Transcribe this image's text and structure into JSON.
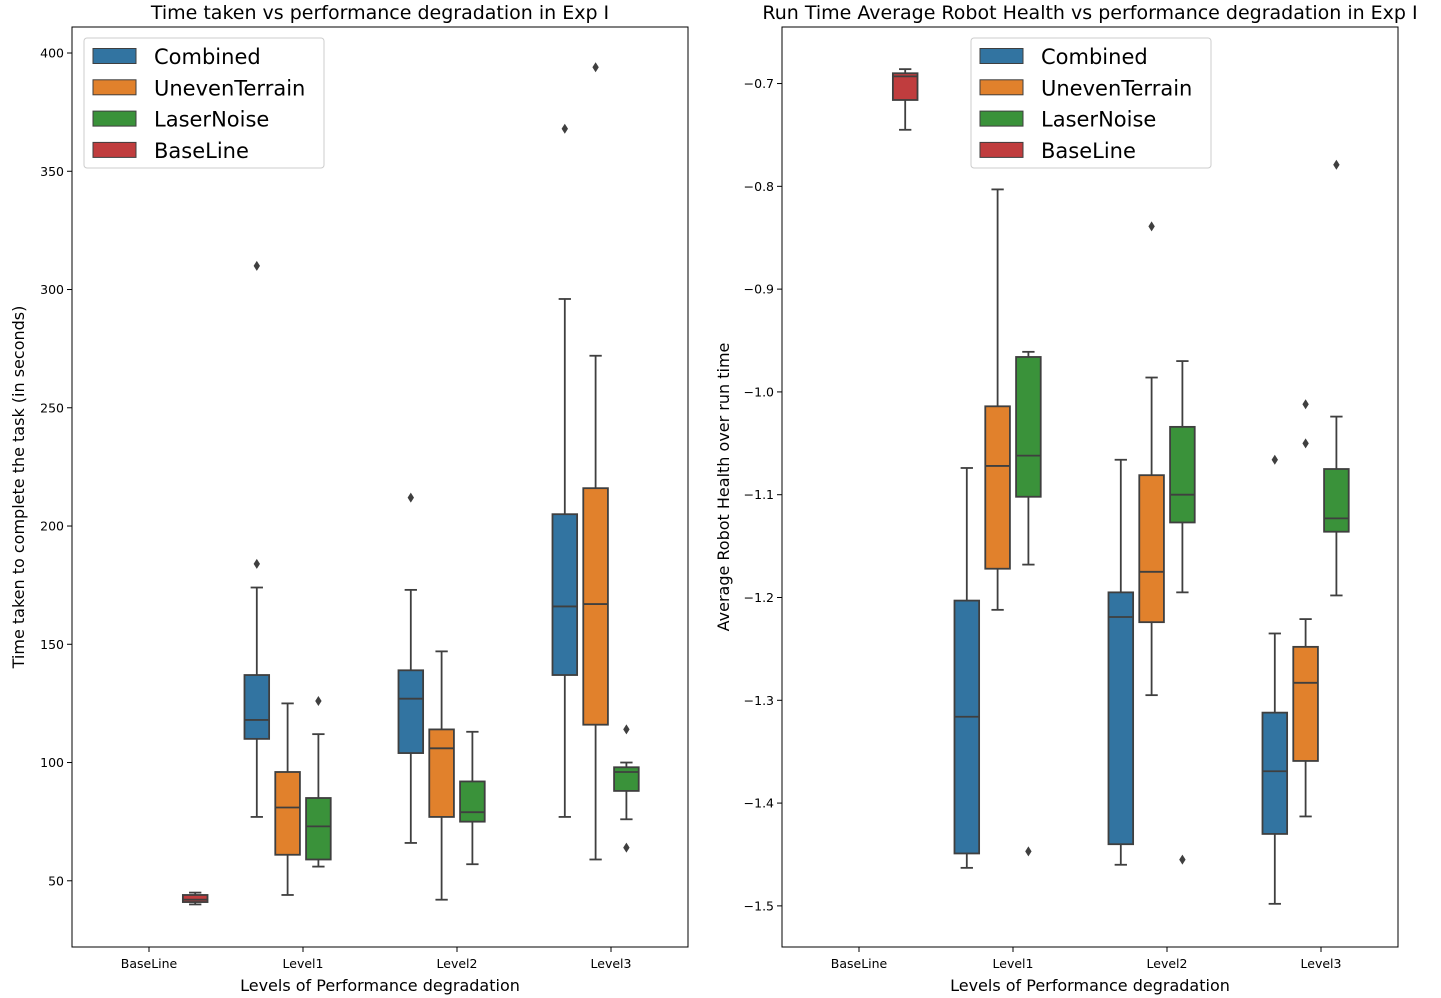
{
  "chart_data": [
    {
      "type": "box",
      "title": "Time taken vs performance degradation in Exp I",
      "xlabel": "Levels of Performance degradation",
      "ylabel": "Time taken to complete the task (in seconds)",
      "categories": [
        "BaseLine",
        "Level1",
        "Level2",
        "Level3"
      ],
      "ylim": [
        22,
        411
      ],
      "yticks": [
        50,
        100,
        150,
        200,
        250,
        300,
        350,
        400
      ],
      "legend_position": "top-left",
      "series": [
        {
          "name": "Combined",
          "color": "#3274a1",
          "boxes": [
            null,
            {
              "whisker_low": 77,
              "q1": 110,
              "median": 118,
              "q3": 137,
              "whisker_high": 174,
              "outliers": [
                184,
                310
              ]
            },
            {
              "whisker_low": 66,
              "q1": 104,
              "median": 127,
              "q3": 139,
              "whisker_high": 173,
              "outliers": [
                212
              ]
            },
            {
              "whisker_low": 77,
              "q1": 137,
              "median": 166,
              "q3": 205,
              "whisker_high": 296,
              "outliers": [
                368
              ]
            }
          ]
        },
        {
          "name": "UnevenTerrain",
          "color": "#e1812c",
          "boxes": [
            null,
            {
              "whisker_low": 44,
              "q1": 61,
              "median": 81,
              "q3": 96,
              "whisker_high": 125,
              "outliers": []
            },
            {
              "whisker_low": 42,
              "q1": 77,
              "median": 106,
              "q3": 114,
              "whisker_high": 147,
              "outliers": []
            },
            {
              "whisker_low": 59,
              "q1": 116,
              "median": 167,
              "q3": 216,
              "whisker_high": 272,
              "outliers": [
                394
              ]
            }
          ]
        },
        {
          "name": "LaserNoise",
          "color": "#3a923a",
          "boxes": [
            null,
            {
              "whisker_low": 56,
              "q1": 59,
              "median": 73,
              "q3": 85,
              "whisker_high": 112,
              "outliers": [
                126
              ]
            },
            {
              "whisker_low": 57,
              "q1": 75,
              "median": 79,
              "q3": 92,
              "whisker_high": 113,
              "outliers": []
            },
            {
              "whisker_low": 76,
              "q1": 88,
              "median": 96,
              "q3": 98,
              "whisker_high": 100,
              "outliers": [
                114,
                64
              ]
            }
          ]
        },
        {
          "name": "BaseLine",
          "color": "#c03d3e",
          "boxes": [
            {
              "whisker_low": 40,
              "q1": 41,
              "median": 42,
              "q3": 44,
              "whisker_high": 45,
              "outliers": []
            },
            null,
            null,
            null
          ]
        }
      ]
    },
    {
      "type": "box",
      "title": "Run Time Average Robot Health vs performance degradation in Exp I",
      "xlabel": "Levels of Performance degradation",
      "ylabel": "Average Robot Health over run time",
      "categories": [
        "BaseLine",
        "Level1",
        "Level2",
        "Level3"
      ],
      "ylim": [
        -1.54,
        -0.645
      ],
      "yticks": [
        -1.5,
        -1.4,
        -1.3,
        -1.2,
        -1.1,
        -1.0,
        -0.9,
        -0.8,
        -0.7
      ],
      "ytick_labels": [
        "−1.5",
        "−1.4",
        "−1.3",
        "−1.2",
        "−1.1",
        "−1.0",
        "−0.9",
        "−0.8",
        "−0.7"
      ],
      "legend_position": "top-center",
      "series": [
        {
          "name": "Combined",
          "color": "#3274a1",
          "boxes": [
            null,
            {
              "whisker_low": -1.463,
              "q1": -1.449,
              "median": -1.316,
              "q3": -1.203,
              "whisker_high": -1.074,
              "outliers": []
            },
            {
              "whisker_low": -1.46,
              "q1": -1.44,
              "median": -1.219,
              "q3": -1.195,
              "whisker_high": -1.066,
              "outliers": []
            },
            {
              "whisker_low": -1.498,
              "q1": -1.43,
              "median": -1.369,
              "q3": -1.312,
              "whisker_high": -1.235,
              "outliers": [
                -1.066
              ]
            }
          ]
        },
        {
          "name": "UnevenTerrain",
          "color": "#e1812c",
          "boxes": [
            null,
            {
              "whisker_low": -1.212,
              "q1": -1.172,
              "median": -1.072,
              "q3": -1.014,
              "whisker_high": -0.803,
              "outliers": []
            },
            {
              "whisker_low": -1.295,
              "q1": -1.224,
              "median": -1.175,
              "q3": -1.081,
              "whisker_high": -0.986,
              "outliers": [
                -0.839
              ]
            },
            {
              "whisker_low": -1.413,
              "q1": -1.359,
              "median": -1.283,
              "q3": -1.248,
              "whisker_high": -1.221,
              "outliers": [
                -1.05,
                -1.012
              ]
            }
          ]
        },
        {
          "name": "LaserNoise",
          "color": "#3a923a",
          "boxes": [
            null,
            {
              "whisker_low": -1.168,
              "q1": -1.102,
              "median": -1.062,
              "q3": -0.966,
              "whisker_high": -0.961,
              "outliers": [
                -1.447
              ]
            },
            {
              "whisker_low": -1.195,
              "q1": -1.127,
              "median": -1.1,
              "q3": -1.034,
              "whisker_high": -0.97,
              "outliers": [
                -1.455
              ]
            },
            {
              "whisker_low": -1.198,
              "q1": -1.136,
              "median": -1.123,
              "q3": -1.075,
              "whisker_high": -1.024,
              "outliers": [
                -0.779
              ]
            }
          ]
        },
        {
          "name": "BaseLine",
          "color": "#c03d3e",
          "boxes": [
            {
              "whisker_low": -0.745,
              "q1": -0.716,
              "median": -0.693,
              "q3": -0.69,
              "whisker_high": -0.686,
              "outliers": []
            },
            null,
            null,
            null
          ]
        }
      ]
    }
  ]
}
